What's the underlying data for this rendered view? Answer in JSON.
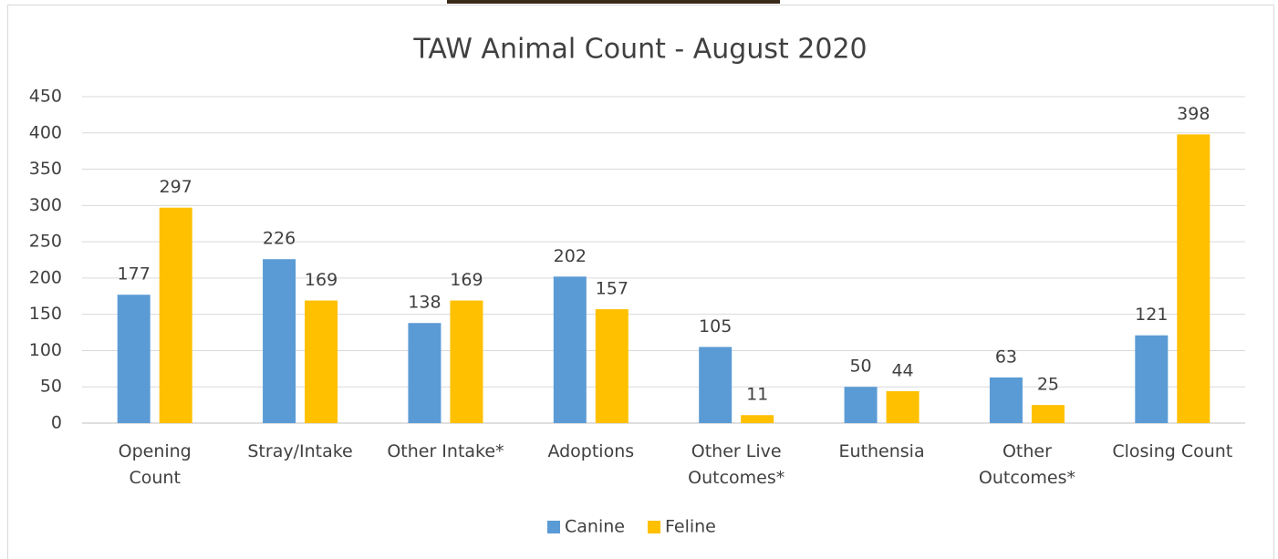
{
  "chart_data": {
    "type": "bar",
    "title": "TAW Animal Count - August 2020",
    "categories": [
      "Opening\nCount",
      "Stray/Intake",
      "Other Intake*",
      "Adoptions",
      "Other Live\nOutcomes*",
      "Euthensia",
      "Other\nOutcomes*",
      "Closing Count"
    ],
    "series": [
      {
        "name": "Canine",
        "color": "#5b9bd5",
        "values": [
          177,
          226,
          138,
          202,
          105,
          50,
          63,
          121
        ]
      },
      {
        "name": "Feline",
        "color": "#ffc000",
        "values": [
          297,
          169,
          169,
          157,
          11,
          44,
          25,
          398
        ]
      }
    ],
    "ylim": [
      0,
      450
    ],
    "yticks": [
      0,
      50,
      100,
      150,
      200,
      250,
      300,
      350,
      400,
      450
    ],
    "grid": true,
    "legend": "bottom"
  }
}
